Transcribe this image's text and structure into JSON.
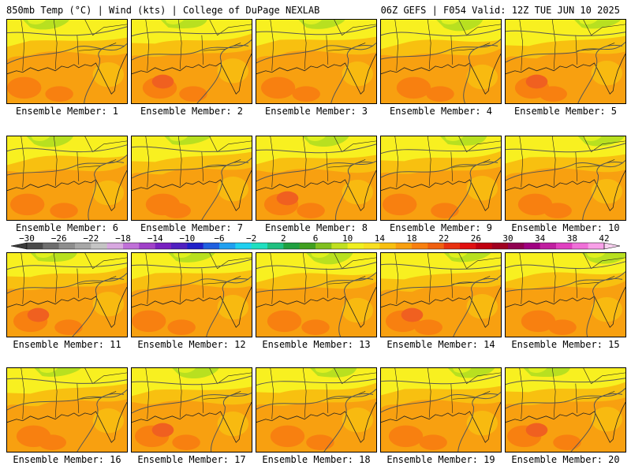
{
  "header": {
    "left": "850mb Temp (°C) | Wind (kts) | College of DuPage NEXLAB",
    "right": "06Z GEFS | F054 Valid: 12Z TUE JUN 10 2025"
  },
  "members": [
    "Ensemble Member: 1",
    "Ensemble Member: 2",
    "Ensemble Member: 3",
    "Ensemble Member: 4",
    "Ensemble Member: 5",
    "Ensemble Member: 6",
    "Ensemble Member: 7",
    "Ensemble Member: 8",
    "Ensemble Member: 9",
    "Ensemble Member: 10",
    "Ensemble Member: 11",
    "Ensemble Member: 12",
    "Ensemble Member: 13",
    "Ensemble Member: 14",
    "Ensemble Member: 15",
    "Ensemble Member: 16",
    "Ensemble Member: 17",
    "Ensemble Member: 18",
    "Ensemble Member: 19",
    "Ensemble Member: 20"
  ],
  "colorbar": {
    "labels": [
      "−30",
      "−26",
      "−22",
      "−18",
      "−14",
      "−10",
      "−6",
      "−2",
      "2",
      "6",
      "10",
      "14",
      "18",
      "22",
      "26",
      "30",
      "34",
      "38",
      "42"
    ],
    "colors": [
      "#4a4a4a",
      "#6e6e6e",
      "#8e8e8e",
      "#a8a8a8",
      "#c4c4c4",
      "#d8a8e0",
      "#c070d8",
      "#a040c8",
      "#7820c0",
      "#5020c0",
      "#2020c8",
      "#2060e0",
      "#20a0f0",
      "#20d0f0",
      "#20e0c0",
      "#20c080",
      "#20a040",
      "#40a020",
      "#80c020",
      "#c0e020",
      "#f0f020",
      "#f8e020",
      "#f8c010",
      "#f8a010",
      "#f88010",
      "#f06010",
      "#e83010",
      "#e01010",
      "#c00010",
      "#a00020",
      "#900050",
      "#a00080",
      "#c020a0",
      "#e040c0",
      "#f070d8",
      "#f8a0e8"
    ]
  },
  "palette": {
    "green": "#b8e020",
    "yellowgreen": "#e0f020",
    "yellow": "#f8f020",
    "lightorange": "#f8c010",
    "orange": "#f8a010",
    "darkorange": "#f88010",
    "redorange": "#f06020"
  }
}
